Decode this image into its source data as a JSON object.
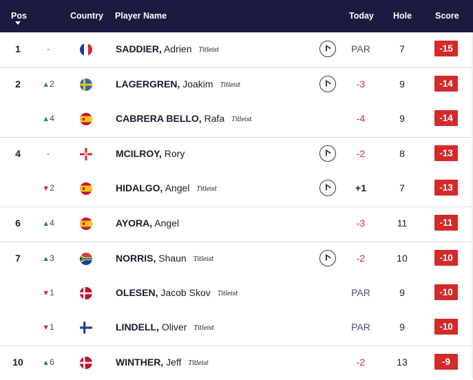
{
  "header": {
    "pos": "Pos",
    "country": "Country",
    "player_name": "Player Name",
    "today": "Today",
    "hole": "Hole",
    "score": "Score"
  },
  "colors": {
    "header_bg": "#1c1a3e",
    "score_bg": "#d42a2a",
    "negative": "#d12b2b",
    "move_up": "#2e8b3a",
    "move_down": "#d12b2b"
  },
  "rows": [
    {
      "pos": "1",
      "move_dir": "none",
      "move": "-",
      "flag": "france-flag",
      "last": "SADDIER,",
      "first": "Adrien",
      "sponsor": "Titleist",
      "video": true,
      "today": "PAR",
      "today_type": "par",
      "hole": "7",
      "score": "-15",
      "divider": false
    },
    {
      "pos": "2",
      "move_dir": "up",
      "move": "2",
      "flag": "sweden-flag",
      "last": "LAGERGREN,",
      "first": "Joakim",
      "sponsor": "Titleist",
      "video": true,
      "today": "-3",
      "today_type": "neg",
      "hole": "9",
      "score": "-14",
      "divider": true
    },
    {
      "pos": "",
      "move_dir": "up",
      "move": "4",
      "flag": "spain-flag",
      "last": "CABRERA BELLO,",
      "first": "Rafa",
      "sponsor": "Titleist",
      "video": false,
      "today": "-4",
      "today_type": "neg",
      "hole": "9",
      "score": "-14",
      "divider": false
    },
    {
      "pos": "4",
      "move_dir": "none",
      "move": "-",
      "flag": "northern-ireland-flag",
      "last": "MCILROY,",
      "first": "Rory",
      "sponsor": "",
      "video": true,
      "today": "-2",
      "today_type": "neg",
      "hole": "8",
      "score": "-13",
      "divider": true
    },
    {
      "pos": "",
      "move_dir": "down",
      "move": "2",
      "flag": "spain-flag",
      "last": "HIDALGO,",
      "first": "Angel",
      "sponsor": "Titleist",
      "video": true,
      "today": "+1",
      "today_type": "pos",
      "hole": "7",
      "score": "-13",
      "divider": false
    },
    {
      "pos": "6",
      "move_dir": "up",
      "move": "4",
      "flag": "spain-flag",
      "last": "AYORA,",
      "first": "Angel",
      "sponsor": "",
      "video": false,
      "today": "-3",
      "today_type": "neg",
      "hole": "11",
      "score": "-11",
      "divider": true
    },
    {
      "pos": "7",
      "move_dir": "up",
      "move": "3",
      "flag": "south-africa-flag",
      "last": "NORRIS,",
      "first": "Shaun",
      "sponsor": "Titleist",
      "video": true,
      "today": "-2",
      "today_type": "neg",
      "hole": "10",
      "score": "-10",
      "divider": true
    },
    {
      "pos": "",
      "move_dir": "down",
      "move": "1",
      "flag": "denmark-flag",
      "last": "OLESEN,",
      "first": "Jacob Skov",
      "sponsor": "Titleist",
      "video": false,
      "today": "PAR",
      "today_type": "par",
      "hole": "9",
      "score": "-10",
      "divider": false
    },
    {
      "pos": "",
      "move_dir": "down",
      "move": "1",
      "flag": "finland-flag",
      "last": "LINDELL,",
      "first": "Oliver",
      "sponsor": "Titleist",
      "video": false,
      "today": "PAR",
      "today_type": "par",
      "hole": "9",
      "score": "-10",
      "divider": false
    },
    {
      "pos": "10",
      "move_dir": "up",
      "move": "6",
      "flag": "denmark-flag",
      "last": "WINTHER,",
      "first": "Jeff",
      "sponsor": "Titleist",
      "video": false,
      "today": "-2",
      "today_type": "neg",
      "hole": "13",
      "score": "-9",
      "divider": true
    }
  ]
}
